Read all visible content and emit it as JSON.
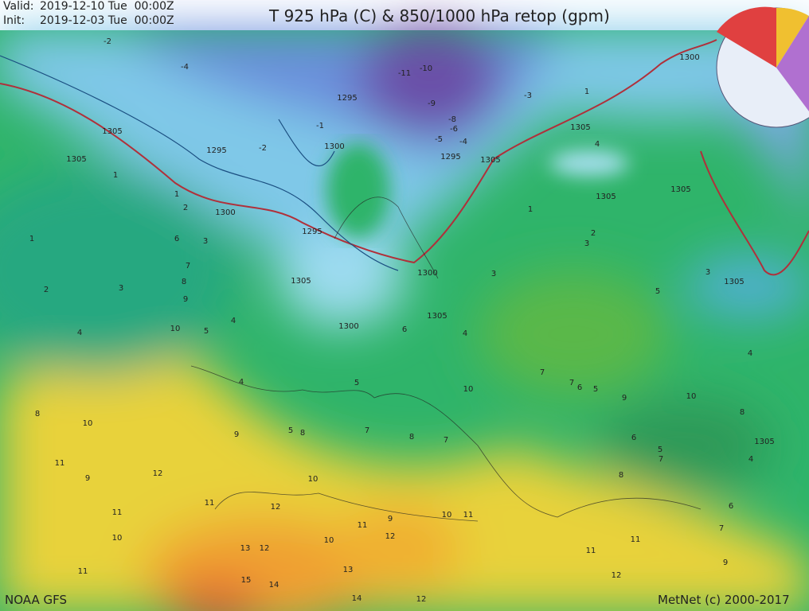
{
  "header": {
    "valid_label": "Valid:",
    "valid": "2019-12-10 Tue  00:00Z",
    "init_label": "Init:",
    "init": "2019-12-03 Tue  00:00Z",
    "title": "T 925 hPa (C) & 850/1000 hPa retop (gpm)"
  },
  "footer": {
    "model": "NOAA GFS",
    "credit": "MetNet (c) 2000-2017"
  },
  "map": {
    "labels": [
      "-2",
      "-4",
      "-11",
      "-10",
      "-9",
      "-8",
      "-6",
      "-5",
      "-4",
      "-3",
      "-1",
      "-2",
      "1300",
      "1295",
      "1305",
      "1295",
      "1305",
      "1300",
      "1305",
      "1295",
      "1305",
      "1305",
      "1305",
      "1300",
      "1295",
      "1305",
      "1300",
      "1305",
      "1300",
      "1305",
      "1305",
      "1",
      "2",
      "3",
      "4",
      "10",
      "8",
      "10",
      "11",
      "9",
      "12",
      "11",
      "10",
      "11",
      "13",
      "12",
      "15",
      "14",
      "14",
      "12",
      "13",
      "11",
      "10",
      "12",
      "11",
      "10",
      "9",
      "5",
      "8",
      "7",
      "8",
      "7",
      "10",
      "10",
      "11",
      "9",
      "12",
      "11",
      "11",
      "12",
      "9",
      "7",
      "6",
      "4",
      "5",
      "7",
      "8",
      "10",
      "9",
      "6",
      "8",
      "4",
      "5",
      "3",
      "2",
      "1",
      "3",
      "4",
      "6",
      "5",
      "4",
      "3",
      "6",
      "7",
      "8",
      "9",
      "5",
      "4",
      "2",
      "1",
      "1",
      "1",
      "4",
      "3",
      "7",
      "6",
      "5",
      "7"
    ]
  }
}
